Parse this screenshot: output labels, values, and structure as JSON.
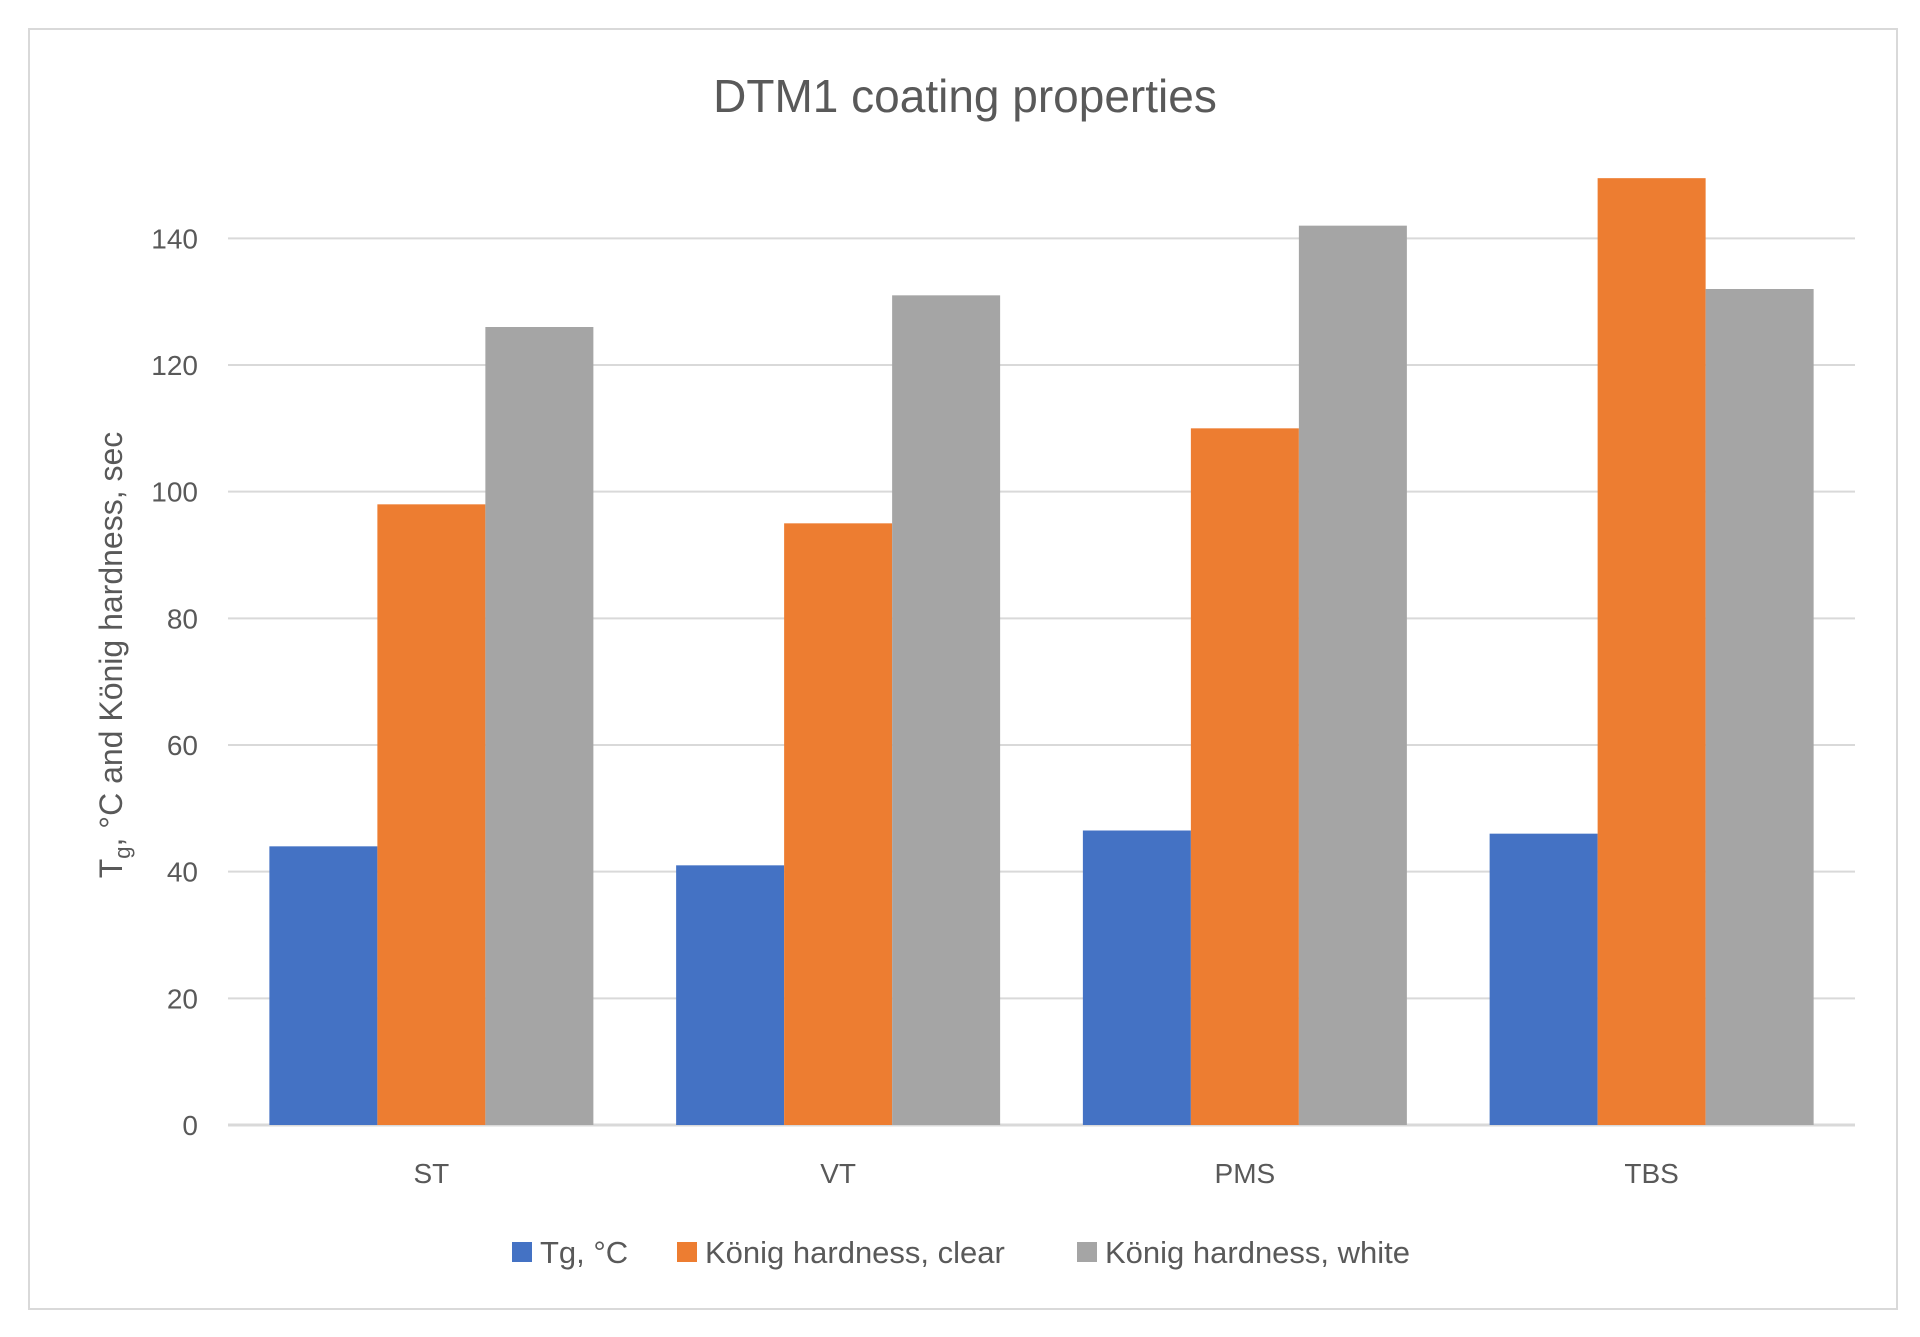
{
  "chart_data": {
    "type": "bar",
    "title": "DTM1 coating properties",
    "ylabel_main": "T",
    "ylabel_sub": "g",
    "ylabel_rest": ", °C and König hardness, sec",
    "xlabel": "",
    "categories": [
      "ST",
      "VT",
      "PMS",
      "TBS"
    ],
    "ylim": [
      0,
      150
    ],
    "yticks": [
      0,
      20,
      40,
      60,
      80,
      100,
      120,
      140
    ],
    "grid": true,
    "legend_position": "bottom",
    "series": [
      {
        "name": "Tg, °C",
        "color": "#4472c4",
        "values": [
          44,
          41,
          46.5,
          46
        ]
      },
      {
        "name": "König hardness, clear",
        "color": "#ed7d31",
        "values": [
          98,
          95,
          110,
          149.5
        ]
      },
      {
        "name": "König hardness, white",
        "color": "#a5a5a5",
        "values": [
          126,
          131,
          142,
          132
        ]
      }
    ]
  }
}
